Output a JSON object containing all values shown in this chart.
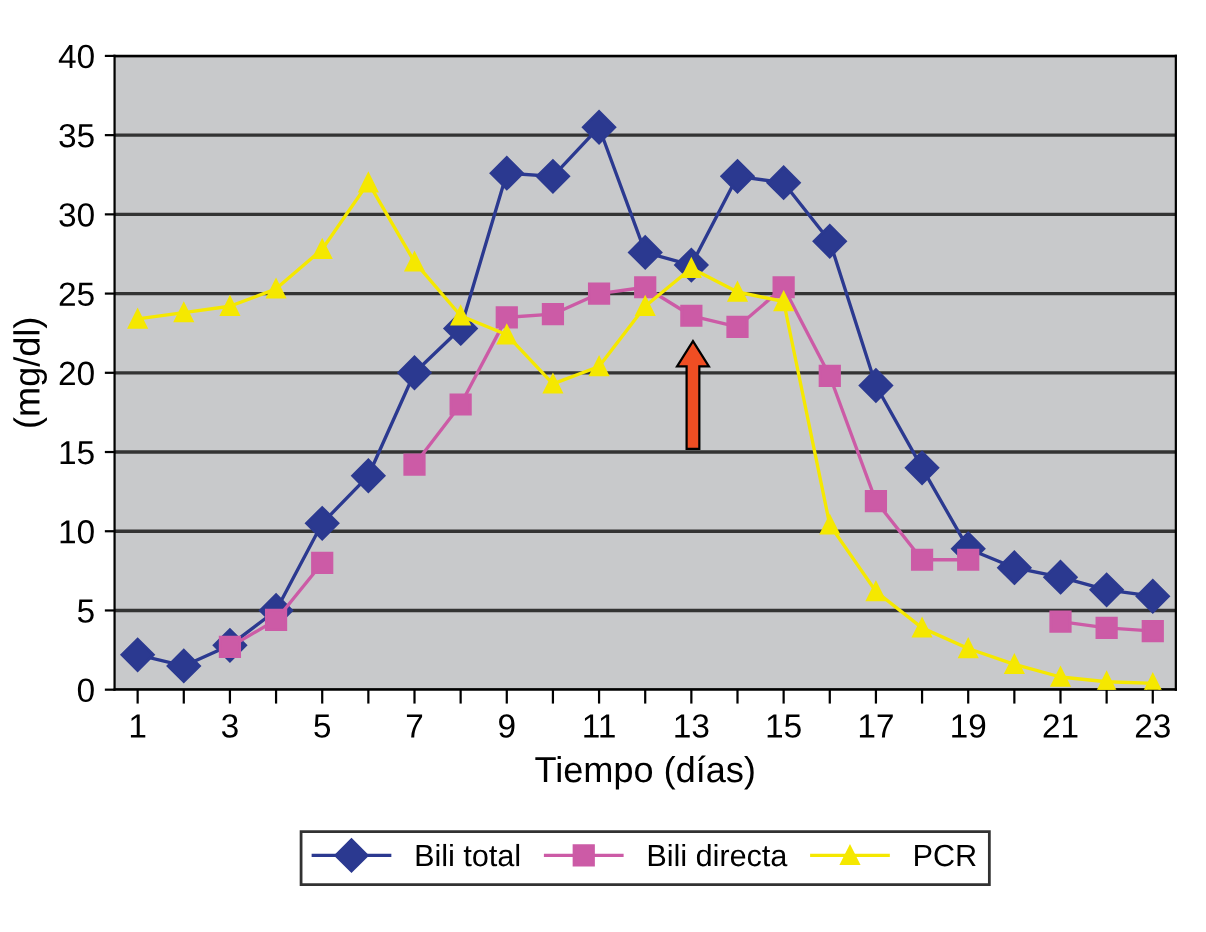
{
  "chart_data": {
    "type": "line",
    "xlabel": "Tiempo (días)",
    "ylabel": "(mg/dl)",
    "x": [
      1,
      2,
      3,
      4,
      5,
      6,
      7,
      8,
      9,
      10,
      11,
      12,
      13,
      14,
      15,
      16,
      17,
      18,
      19,
      20,
      21,
      22,
      23
    ],
    "series": [
      {
        "name": "Bili total",
        "color": "#2b3990",
        "marker": "diamond",
        "values": [
          2.2,
          1.5,
          2.8,
          5,
          10.5,
          13.5,
          20,
          22.8,
          32.6,
          32.4,
          35.5,
          27.6,
          26.8,
          32.4,
          32,
          28.3,
          19.2,
          14,
          8.9,
          7.7,
          7.1,
          6.3,
          5.9
        ]
      },
      {
        "name": "Bili directa",
        "color": "#cc5ba6",
        "marker": "square",
        "values": [
          null,
          null,
          2.7,
          4.4,
          8,
          null,
          14.2,
          18,
          23.5,
          23.7,
          25,
          25.4,
          23.6,
          22.9,
          25.4,
          19.8,
          11.9,
          8.2,
          8.2,
          null,
          4.3,
          3.9,
          3.7
        ]
      },
      {
        "name": "PCR",
        "color": "#f5e800",
        "marker": "triangle",
        "values": [
          23.4,
          23.8,
          24.2,
          25.3,
          27.8,
          32,
          27,
          23.6,
          22.4,
          19.3,
          20.4,
          24.2,
          26.6,
          25.1,
          24.5,
          10.4,
          6.2,
          3.9,
          2.6,
          1.6,
          0.8,
          0.5,
          0.4
        ]
      }
    ],
    "xlim": [
      0.5,
      23.5
    ],
    "xticks": [
      1,
      {
        "value": 2,
        "label": null
      },
      3,
      {
        "value": 4,
        "label": null
      },
      5,
      {
        "value": 6,
        "label": null
      },
      7,
      {
        "value": 8,
        "label": null
      },
      9,
      {
        "value": 10,
        "label": null
      },
      11,
      {
        "value": 12,
        "label": null
      },
      13,
      {
        "value": 14,
        "label": null
      },
      15,
      {
        "value": 16,
        "label": null
      },
      17,
      {
        "value": 18,
        "label": null
      },
      19,
      {
        "value": 20,
        "label": null
      },
      21,
      {
        "value": 22,
        "label": null
      },
      23
    ],
    "ylim": [
      0,
      40
    ],
    "yticks": [
      0,
      5,
      10,
      15,
      20,
      25,
      30,
      35,
      40
    ],
    "grid": "y",
    "legend": "bottom",
    "line_style": "solid"
  }
}
